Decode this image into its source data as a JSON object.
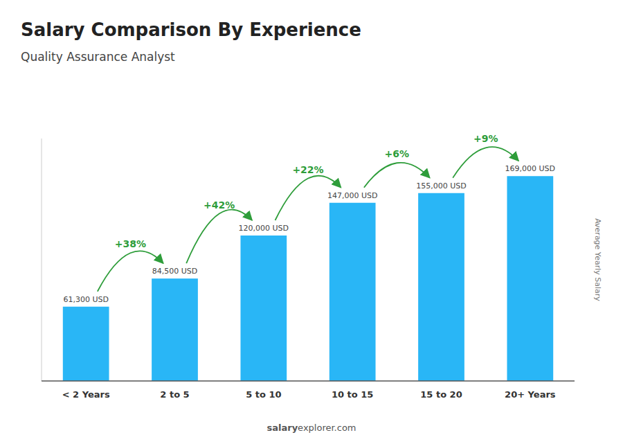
{
  "chart_data": {
    "type": "bar",
    "title": "Salary Comparison By Experience",
    "subtitle": "Quality Assurance Analyst",
    "ylabel": "Average Yearly Salary",
    "watermark": [
      "salary",
      "explorer.com"
    ],
    "categories": [
      "< 2 Years",
      "2 to 5",
      "5 to 10",
      "10 to 15",
      "15 to 20",
      "20+ Years"
    ],
    "values": [
      61300,
      84500,
      120000,
      147000,
      155000,
      169000
    ],
    "value_labels": [
      "61,300 USD",
      "84,500 USD",
      "120,000 USD",
      "147,000 USD",
      "155,000 USD",
      "169,000 USD"
    ],
    "change_labels": [
      "+38%",
      "+42%",
      "+22%",
      "+6%",
      "+9%"
    ],
    "color": "#29B6F6",
    "ylim": [
      0,
      200000
    ],
    "data_labels": true,
    "tick_labels": "x",
    "grid": false
  }
}
